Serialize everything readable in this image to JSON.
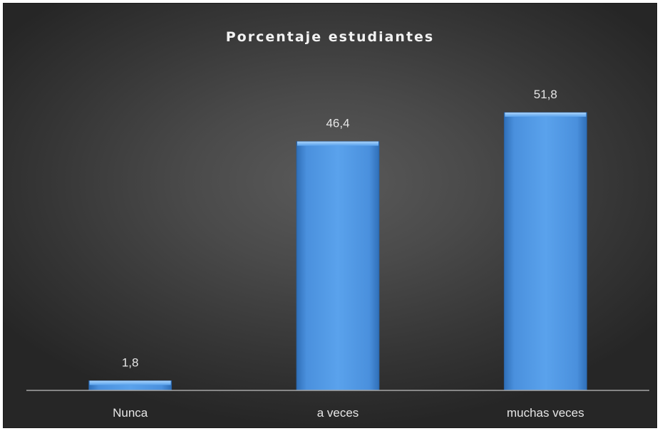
{
  "chart_data": {
    "type": "bar",
    "title": "Porcentaje estudiantes",
    "categories": [
      "Nunca",
      "a veces",
      "muchas veces"
    ],
    "values": [
      1.8,
      46.4,
      51.8
    ],
    "value_labels": [
      "1,8",
      "46,4",
      "51,8"
    ],
    "xlabel": "",
    "ylabel": "",
    "ylim": [
      0,
      60
    ],
    "grid": false,
    "legend": "none",
    "bar_color": "#4a90dd",
    "background_color": "#4a4a4a"
  }
}
